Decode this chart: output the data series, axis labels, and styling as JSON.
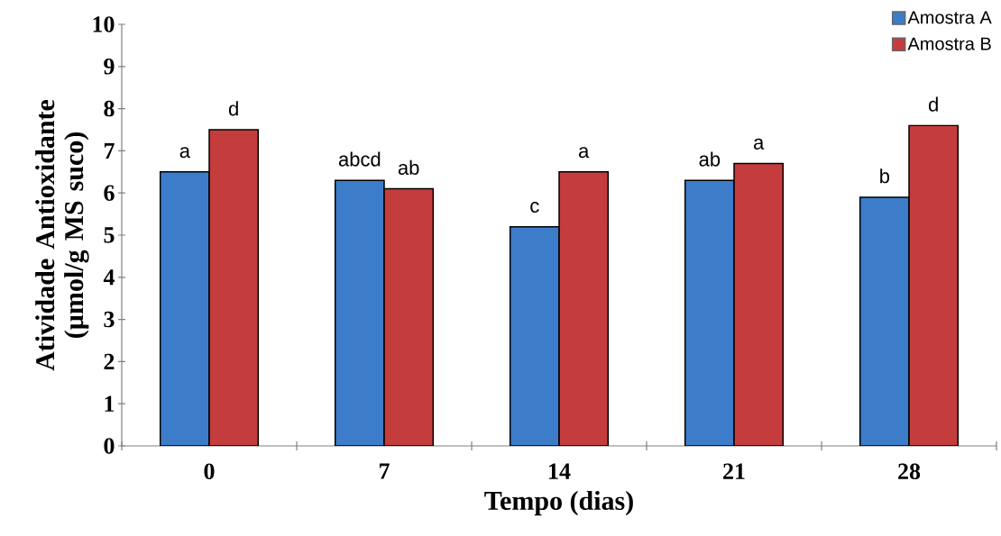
{
  "chart_data": {
    "type": "bar",
    "xlabel": "Tempo (dias)",
    "ylabel": "Atividade Antioxidante (µmol/g MS suco)",
    "categories": [
      "0",
      "7",
      "14",
      "21",
      "28"
    ],
    "series": [
      {
        "name": "Amostra A",
        "color": "#3d7cc9",
        "values": [
          6.5,
          6.3,
          5.2,
          6.3,
          5.9
        ],
        "value_labels": [
          "a",
          "abcd",
          "c",
          "ab",
          "b"
        ]
      },
      {
        "name": "Amostra B",
        "color": "#c43c3c",
        "values": [
          7.5,
          6.1,
          6.5,
          6.7,
          7.6
        ],
        "value_labels": [
          "d",
          "ab",
          "a",
          "a",
          "d"
        ]
      }
    ],
    "ylim": [
      0,
      10
    ],
    "yticks": [
      0,
      1,
      2,
      3,
      4,
      5,
      6,
      7,
      8,
      9,
      10
    ],
    "legend": "top right"
  }
}
